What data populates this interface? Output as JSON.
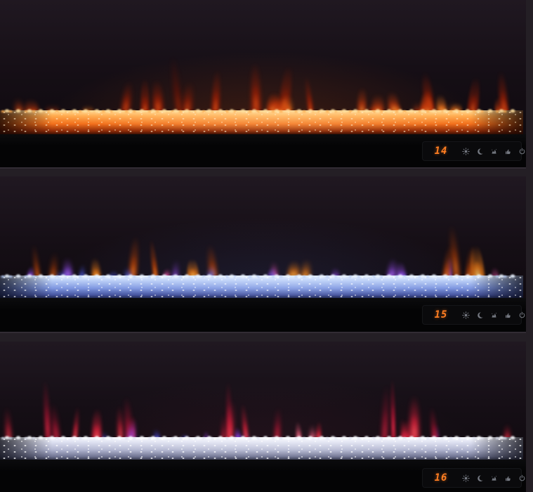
{
  "product": {
    "description": "Three wall-mounted linear electric fireplaces shown in different flame color modes",
    "units_count": 3
  },
  "scene": {
    "wall_color": "#241f25",
    "unit_body_color": "#0c080c",
    "front_panel_color": "#040405"
  },
  "display": {
    "digit_color": "#ff7e22",
    "icon_color": "#8d929c",
    "panel_color": "#0a0a0c",
    "icons": [
      {
        "name": "brightness-sun-icon",
        "glyph": "sun",
        "meaning": "flame brightness / color"
      },
      {
        "name": "sleep-timer-moon-icon",
        "glyph": "moon",
        "meaning": "sleep timer"
      },
      {
        "name": "flame-effect-icon",
        "glyph": "flame",
        "meaning": "flame effect"
      },
      {
        "name": "hand-touch-icon",
        "glyph": "hand",
        "meaning": "manual control"
      },
      {
        "name": "power-icon",
        "glyph": "power",
        "meaning": "power on/off"
      }
    ]
  },
  "fireplaces": [
    {
      "id": "top-unit",
      "display_value": "14",
      "mode": "orange flames over amber-lit crystals",
      "glow": "rgba(255,100,20,0.20)",
      "bed": {
        "top": "#ffdf9e",
        "hi": "#ffab4e",
        "mid": "#f2701c",
        "deep": "#8c2a08",
        "dark": "#2e0c04",
        "spark": "rgba(255,236,200,0.55)",
        "edge": "rgba(24,6,2,0.85)",
        "center": "rgba(255,214,150,0.50)"
      },
      "flames": {
        "seed": 7,
        "count": 32,
        "palette": [
          {
            "color": "#c43a0c",
            "core": "#ffb148",
            "weight": 4,
            "hMin": 22,
            "hMax": 48,
            "wMin": 12,
            "wMax": 26
          },
          {
            "color": "#ff7a1c",
            "core": "#ffd27a",
            "weight": 3,
            "hMin": 18,
            "hMax": 38,
            "wMin": 10,
            "wMax": 22
          },
          {
            "color": "#8f1d06",
            "core": "#e8581a",
            "weight": 3,
            "hMin": 35,
            "hMax": 85,
            "wMin": 8,
            "wMax": 16
          },
          {
            "color": "#6a1205",
            "core": "#c43a0c",
            "weight": 2,
            "hMin": 60,
            "hMax": 110,
            "wMin": 6,
            "wMax": 12
          }
        ]
      }
    },
    {
      "id": "middle-unit",
      "display_value": "15",
      "mode": "blue, orange and violet flames over blue-lit crystals",
      "glow": "rgba(110,140,255,0.13)",
      "bed": {
        "top": "#eaf3ff",
        "hi": "#b9cdf6",
        "mid": "#7f97e0",
        "deep": "#46549e",
        "dark": "#1a2142",
        "spark": "rgba(255,255,255,0.60)",
        "edge": "rgba(8,10,24,0.80)",
        "center": "rgba(214,228,255,0.35)"
      },
      "flames": {
        "seed": 13,
        "count": 32,
        "palette": [
          {
            "color": "#4a56e0",
            "core": "#aab8ff",
            "weight": 3,
            "hMin": 14,
            "hMax": 30,
            "wMin": 8,
            "wMax": 16
          },
          {
            "color": "#e87816",
            "core": "#ffd06a",
            "weight": 3,
            "hMin": 28,
            "hMax": 60,
            "wMin": 10,
            "wMax": 20
          },
          {
            "color": "#8a46d8",
            "core": "#c88aff",
            "weight": 2,
            "hMin": 20,
            "hMax": 45,
            "wMin": 8,
            "wMax": 14
          },
          {
            "color": "#d84a9a",
            "core": "#ff9ac8",
            "weight": 1,
            "hMin": 16,
            "hMax": 30,
            "wMin": 7,
            "wMax": 12
          },
          {
            "color": "#a33a08",
            "core": "#ff8c2e",
            "weight": 2,
            "hMin": 45,
            "hMax": 90,
            "wMin": 6,
            "wMax": 12
          }
        ]
      }
    },
    {
      "id": "bottom-unit",
      "display_value": "16",
      "mode": "crimson, magenta and violet flames over clear white crystals",
      "glow": "rgba(200,80,120,0.10)",
      "bed": {
        "top": "#fafbff",
        "hi": "#dcdff0",
        "mid": "#b0b4cf",
        "deep": "#6f7391",
        "dark": "#2c2e40",
        "spark": "rgba(255,255,255,0.70)",
        "edge": "rgba(10,10,18,0.80)",
        "center": "rgba(255,255,255,0.30)"
      },
      "flames": {
        "seed": 29,
        "count": 34,
        "palette": [
          {
            "color": "#d8203a",
            "core": "#ff6a6a",
            "weight": 4,
            "hMin": 30,
            "hMax": 75,
            "wMin": 7,
            "wMax": 14
          },
          {
            "color": "#a01430",
            "core": "#e8304a",
            "weight": 3,
            "hMin": 45,
            "hMax": 100,
            "wMin": 6,
            "wMax": 11
          },
          {
            "color": "#8438d0",
            "core": "#c080ff",
            "weight": 2,
            "hMin": 15,
            "hMax": 35,
            "wMin": 6,
            "wMax": 11
          },
          {
            "color": "#4848e0",
            "core": "#9aa8ff",
            "weight": 1,
            "hMin": 12,
            "hMax": 26,
            "wMin": 6,
            "wMax": 10
          },
          {
            "color": "#e85a78",
            "core": "#ffb0c0",
            "weight": 1,
            "hMin": 20,
            "hMax": 40,
            "wMin": 6,
            "wMax": 10
          }
        ]
      }
    }
  ]
}
